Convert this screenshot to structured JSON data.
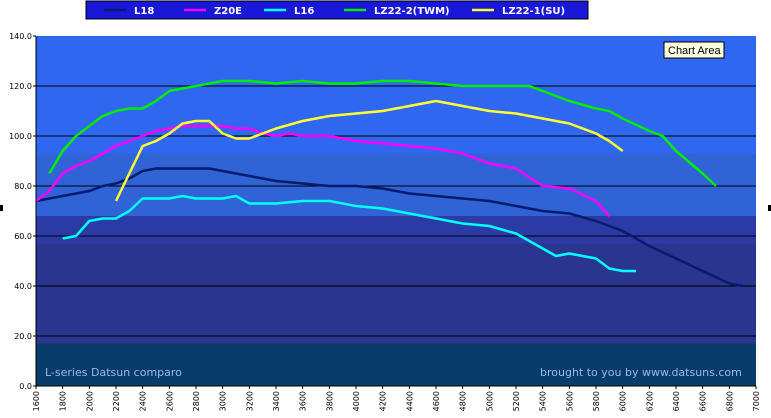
{
  "chart_data": {
    "type": "line",
    "title": "",
    "xlabel": "",
    "ylabel": "",
    "xlim": [
      1600,
      7000
    ],
    "ylim": [
      0,
      140
    ],
    "x_ticks": [
      "1600",
      "1800",
      "2000",
      "2200",
      "2400",
      "2600",
      "2800",
      "3000",
      "3200",
      "3400",
      "3600",
      "3800",
      "4000",
      "4200",
      "4400",
      "4600",
      "4800",
      "5000",
      "5200",
      "5400",
      "5600",
      "5800",
      "6000",
      "6200",
      "6400",
      "6600",
      "6800",
      "7000"
    ],
    "y_ticks": [
      "0.0",
      "20.0",
      "40.0",
      "60.0",
      "80.0",
      "100.0",
      "120.0",
      "140.0"
    ],
    "grid": true,
    "legend_position": "top",
    "background_bands": [
      {
        "from": 0,
        "to": 17,
        "color": "#083c6a"
      },
      {
        "from": 17,
        "to": 57,
        "color": "#2a3590"
      },
      {
        "from": 57,
        "to": 68,
        "color": "#2c3aa6"
      },
      {
        "from": 68,
        "to": 93,
        "color": "#2f63d6"
      },
      {
        "from": 93,
        "to": 140,
        "color": "#2f67f0"
      }
    ],
    "series": [
      {
        "name": "L18",
        "color": "#0a1a6e",
        "points": [
          [
            1600,
            74
          ],
          [
            1700,
            75
          ],
          [
            1800,
            76
          ],
          [
            1900,
            77
          ],
          [
            2000,
            78
          ],
          [
            2100,
            80
          ],
          [
            2200,
            81
          ],
          [
            2300,
            83
          ],
          [
            2400,
            86
          ],
          [
            2500,
            87
          ],
          [
            2600,
            87
          ],
          [
            2700,
            87
          ],
          [
            2800,
            87
          ],
          [
            2900,
            87
          ],
          [
            3000,
            86
          ],
          [
            3100,
            85
          ],
          [
            3200,
            84
          ],
          [
            3300,
            83
          ],
          [
            3400,
            82
          ],
          [
            3600,
            81
          ],
          [
            3800,
            80
          ],
          [
            4000,
            80
          ],
          [
            4200,
            79
          ],
          [
            4400,
            77
          ],
          [
            4600,
            76
          ],
          [
            4800,
            75
          ],
          [
            5000,
            74
          ],
          [
            5200,
            72
          ],
          [
            5400,
            70
          ],
          [
            5600,
            69
          ],
          [
            5800,
            66
          ],
          [
            6000,
            62
          ],
          [
            6200,
            56
          ],
          [
            6400,
            51
          ],
          [
            6600,
            46
          ],
          [
            6800,
            41
          ],
          [
            6900,
            40
          ]
        ]
      },
      {
        "name": "Z20E",
        "color": "#ff00ff",
        "points": [
          [
            1600,
            74
          ],
          [
            1700,
            78
          ],
          [
            1800,
            85
          ],
          [
            1900,
            88
          ],
          [
            2000,
            90
          ],
          [
            2100,
            93
          ],
          [
            2200,
            96
          ],
          [
            2300,
            98
          ],
          [
            2400,
            100
          ],
          [
            2500,
            102
          ],
          [
            2600,
            103
          ],
          [
            2700,
            104
          ],
          [
            2800,
            104
          ],
          [
            2900,
            104
          ],
          [
            3000,
            104
          ],
          [
            3100,
            103
          ],
          [
            3200,
            103
          ],
          [
            3300,
            101
          ],
          [
            3400,
            100
          ],
          [
            3500,
            101
          ],
          [
            3600,
            100
          ],
          [
            3700,
            100
          ],
          [
            3800,
            100
          ],
          [
            3900,
            99
          ],
          [
            4000,
            98
          ],
          [
            4200,
            97
          ],
          [
            4400,
            96
          ],
          [
            4600,
            95
          ],
          [
            4800,
            93
          ],
          [
            5000,
            89
          ],
          [
            5200,
            87
          ],
          [
            5400,
            80
          ],
          [
            5600,
            79
          ],
          [
            5800,
            74
          ],
          [
            5900,
            68
          ]
        ]
      },
      {
        "name": "L16",
        "color": "#00ffff",
        "points": [
          [
            1800,
            59
          ],
          [
            1900,
            60
          ],
          [
            2000,
            66
          ],
          [
            2100,
            67
          ],
          [
            2200,
            67
          ],
          [
            2300,
            70
          ],
          [
            2400,
            75
          ],
          [
            2500,
            75
          ],
          [
            2600,
            75
          ],
          [
            2700,
            76
          ],
          [
            2800,
            75
          ],
          [
            2900,
            75
          ],
          [
            3000,
            75
          ],
          [
            3100,
            76
          ],
          [
            3200,
            73
          ],
          [
            3300,
            73
          ],
          [
            3400,
            73
          ],
          [
            3600,
            74
          ],
          [
            3800,
            74
          ],
          [
            4000,
            72
          ],
          [
            4200,
            71
          ],
          [
            4400,
            69
          ],
          [
            4600,
            67
          ],
          [
            4800,
            65
          ],
          [
            5000,
            64
          ],
          [
            5200,
            61
          ],
          [
            5400,
            55
          ],
          [
            5500,
            52
          ],
          [
            5600,
            53
          ],
          [
            5800,
            51
          ],
          [
            5900,
            47
          ],
          [
            6000,
            46
          ],
          [
            6100,
            46
          ]
        ]
      },
      {
        "name": "LZ22-2(TWM)",
        "color": "#00ee00",
        "points": [
          [
            1700,
            85
          ],
          [
            1800,
            94
          ],
          [
            1900,
            100
          ],
          [
            2000,
            104
          ],
          [
            2100,
            108
          ],
          [
            2200,
            110
          ],
          [
            2300,
            111
          ],
          [
            2400,
            111
          ],
          [
            2500,
            114
          ],
          [
            2600,
            118
          ],
          [
            2700,
            119
          ],
          [
            2800,
            120
          ],
          [
            2900,
            121
          ],
          [
            3000,
            122
          ],
          [
            3200,
            122
          ],
          [
            3400,
            121
          ],
          [
            3600,
            122
          ],
          [
            3800,
            121
          ],
          [
            4000,
            121
          ],
          [
            4200,
            122
          ],
          [
            4400,
            122
          ],
          [
            4600,
            121
          ],
          [
            4800,
            120
          ],
          [
            5000,
            120
          ],
          [
            5200,
            120
          ],
          [
            5300,
            120
          ],
          [
            5400,
            118
          ],
          [
            5600,
            114
          ],
          [
            5800,
            111
          ],
          [
            5900,
            110
          ],
          [
            6000,
            107
          ],
          [
            6200,
            102
          ],
          [
            6300,
            100
          ],
          [
            6400,
            94
          ],
          [
            6600,
            85
          ],
          [
            6700,
            80
          ]
        ]
      },
      {
        "name": "LZ22-1(SU)",
        "color": "#ffff33",
        "points": [
          [
            2200,
            74
          ],
          [
            2300,
            85
          ],
          [
            2400,
            96
          ],
          [
            2500,
            98
          ],
          [
            2600,
            101
          ],
          [
            2700,
            105
          ],
          [
            2800,
            106
          ],
          [
            2900,
            106
          ],
          [
            3000,
            101
          ],
          [
            3100,
            99
          ],
          [
            3200,
            99
          ],
          [
            3300,
            101
          ],
          [
            3400,
            103
          ],
          [
            3600,
            106
          ],
          [
            3800,
            108
          ],
          [
            4000,
            109
          ],
          [
            4200,
            110
          ],
          [
            4400,
            112
          ],
          [
            4600,
            114
          ],
          [
            4800,
            112
          ],
          [
            5000,
            110
          ],
          [
            5200,
            109
          ],
          [
            5400,
            107
          ],
          [
            5600,
            105
          ],
          [
            5800,
            101
          ],
          [
            5900,
            98
          ],
          [
            6000,
            94
          ]
        ]
      }
    ],
    "annotations": [
      "L-series Datsun comparo",
      "brought to you by www.datsuns.com"
    ],
    "tooltip": "Chart Area"
  }
}
